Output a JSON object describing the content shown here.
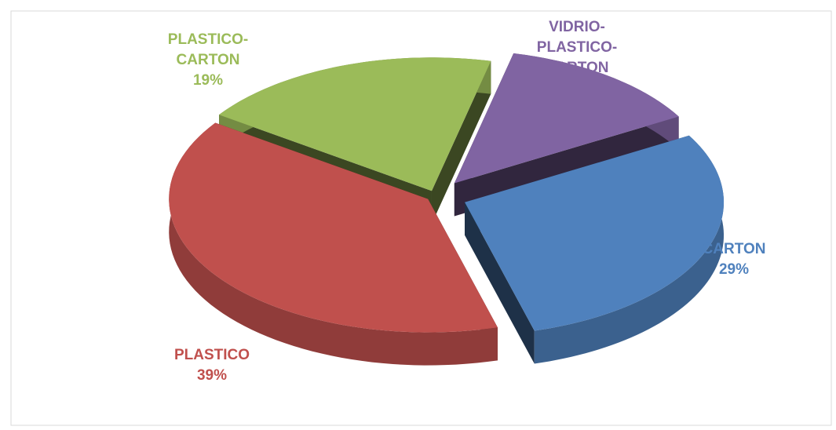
{
  "chart_data": {
    "type": "pie3d",
    "categories": [
      "CARTON",
      "PLASTICO",
      "PLASTICO-CARTON",
      "VIDRIO-PLASTICO-CARTON"
    ],
    "values": [
      29,
      39,
      19,
      13
    ],
    "value_labels": [
      "29%",
      "39%",
      "19%",
      null
    ],
    "colors": [
      "#4f81bd",
      "#c0504d",
      "#9bbb59",
      "#8064a2"
    ]
  }
}
